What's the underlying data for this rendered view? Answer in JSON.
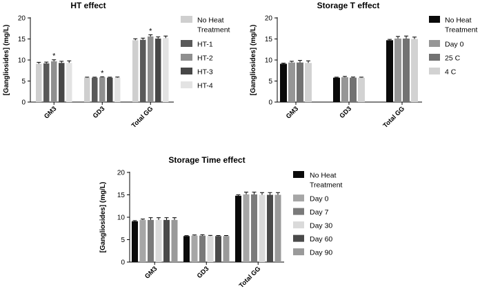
{
  "chart_data": [
    {
      "id": "ht",
      "type": "bar",
      "title": "HT effect",
      "ylabel": "[Gangliosides] (mg/L)",
      "xlabel": "",
      "ylim": [
        0,
        20
      ],
      "yticks": [
        0,
        5,
        10,
        15,
        20
      ],
      "categories": [
        "GM3",
        "GD3",
        "Total GG"
      ],
      "series": [
        {
          "name": "No Heat Treatment",
          "color": "#cfcfcf",
          "values": [
            9.1,
            5.8,
            14.7
          ],
          "errors": [
            0.35,
            0.12,
            0.35
          ]
        },
        {
          "name": "HT-1",
          "color": "#595959",
          "values": [
            9.2,
            5.8,
            14.8
          ],
          "errors": [
            0.3,
            0.12,
            0.4
          ]
        },
        {
          "name": "HT-2",
          "color": "#8f8f8f",
          "values": [
            9.7,
            5.9,
            15.6
          ],
          "errors": [
            0.35,
            0.12,
            0.4
          ]
        },
        {
          "name": "HT-3",
          "color": "#474747",
          "values": [
            9.3,
            5.8,
            15.1
          ],
          "errors": [
            0.4,
            0.12,
            0.4
          ]
        },
        {
          "name": "HT-4",
          "color": "#e3e3e3",
          "values": [
            9.3,
            5.8,
            15.2
          ],
          "errors": [
            0.5,
            0.15,
            0.5
          ]
        }
      ],
      "annotations": [
        {
          "text": "*",
          "category": "GM3",
          "series": "HT-2"
        },
        {
          "text": "*",
          "category": "GD3",
          "series": "HT-2"
        },
        {
          "text": "*",
          "category": "Total GG",
          "series": "HT-2"
        }
      ]
    },
    {
      "id": "storageT",
      "type": "bar",
      "title": "Storage T effect",
      "ylabel": "[Gangliosides] (mg/L)",
      "xlabel": "",
      "ylim": [
        0,
        20
      ],
      "yticks": [
        0,
        5,
        10,
        15,
        20
      ],
      "categories": [
        "GM3",
        "GD3",
        "Total GG"
      ],
      "series": [
        {
          "name": "No Heat Treatment",
          "color": "#0a0a0a",
          "values": [
            9.1,
            5.8,
            14.7
          ],
          "errors": [
            0.15,
            0.12,
            0.2
          ]
        },
        {
          "name": "Day 0",
          "color": "#969696",
          "values": [
            9.4,
            5.9,
            15.1
          ],
          "errors": [
            0.3,
            0.2,
            0.5
          ]
        },
        {
          "name": "25 C",
          "color": "#727272",
          "values": [
            9.4,
            5.8,
            15.1
          ],
          "errors": [
            0.5,
            0.15,
            0.6
          ]
        },
        {
          "name": "4 C",
          "color": "#d2d2d2",
          "values": [
            9.3,
            5.8,
            15.0
          ],
          "errors": [
            0.5,
            0.12,
            0.45
          ]
        }
      ],
      "annotations": []
    },
    {
      "id": "storageTime",
      "type": "bar",
      "title": "Storage Time effect",
      "ylabel": "[Gangliosides] (mg/L)",
      "xlabel": "",
      "ylim": [
        0,
        20
      ],
      "yticks": [
        0,
        5,
        10,
        15,
        20
      ],
      "categories": [
        "GM3",
        "GD3",
        "Total GG"
      ],
      "series": [
        {
          "name": "No Heat Treatment",
          "color": "#0a0a0a",
          "values": [
            9.1,
            5.8,
            14.8
          ],
          "errors": [
            0.15,
            0.1,
            0.2
          ]
        },
        {
          "name": "Day 0",
          "color": "#a6a6a6",
          "values": [
            9.4,
            5.9,
            15.1
          ],
          "errors": [
            0.2,
            0.15,
            0.5
          ]
        },
        {
          "name": "Day 7",
          "color": "#7a7a7a",
          "values": [
            9.4,
            5.9,
            15.1
          ],
          "errors": [
            0.5,
            0.2,
            0.5
          ]
        },
        {
          "name": "Day 30",
          "color": "#dadada",
          "values": [
            9.4,
            5.8,
            15.0
          ],
          "errors": [
            0.5,
            0.15,
            0.5
          ]
        },
        {
          "name": "Day 60",
          "color": "#4a4a4a",
          "values": [
            9.4,
            5.8,
            15.0
          ],
          "errors": [
            0.5,
            0.12,
            0.5
          ]
        },
        {
          "name": "Day 90",
          "color": "#9a9a9a",
          "values": [
            9.4,
            5.8,
            15.0
          ],
          "errors": [
            0.5,
            0.12,
            0.5
          ]
        }
      ],
      "annotations": []
    }
  ]
}
